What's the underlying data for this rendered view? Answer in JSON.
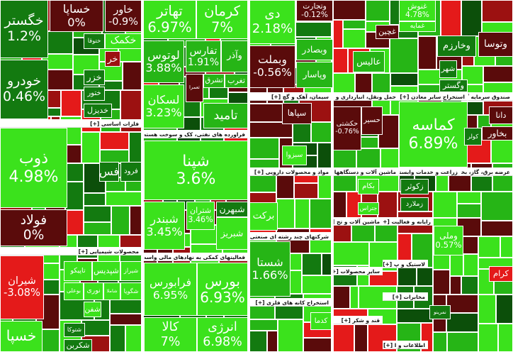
{
  "sectors": [
    {
      "title": "فلزات اساسی [+]"
    },
    {
      "title": "محصولات شیمیایی [+]"
    },
    {
      "title": "فراورده های نفتی، کک و سوخت هسته ای [+]"
    },
    {
      "title": "فعالیتهای کمکی به نهادهای مالی واسط [+]"
    },
    {
      "title": "سیمان، آهک و گچ [+]"
    },
    {
      "title": "مواد و محصولات دارویی [+]"
    },
    {
      "title": "شرکتهای چند رشته ای صنعتی [+]"
    },
    {
      "title": "استخراج کانه های فلزی [+]"
    },
    {
      "title": "حمل ونقل، انبارداری و ا [+]"
    },
    {
      "title": "استخراج سایر معادن [+]"
    },
    {
      "title": "صندوق سرمایه گذاری"
    },
    {
      "title": "ماشین آلات و دستگاهها [+]"
    },
    {
      "title": "زراعت و خدمات وابسته [+]"
    },
    {
      "title": "عرضه برق، گاز، بخا"
    },
    {
      "title": "ماشین آلات و تج [+]"
    },
    {
      "title": "رایانه و فعالیت [+]"
    },
    {
      "title": "لاستیک و پ [+]"
    },
    {
      "title": "سایر محصولات [+]"
    },
    {
      "title": "مخابرات [+]"
    },
    {
      "title": "قند و شکر [+]"
    },
    {
      "title": "اطلاعات و ا [+]"
    }
  ],
  "tiles": [
    {
      "name": "خگستر",
      "change": "1.2%"
    },
    {
      "name": "خودرو",
      "change": "0.46%"
    },
    {
      "name": "خساپا",
      "change": "0%"
    },
    {
      "name": "خاور",
      "change": "-0.9%"
    },
    {
      "name": "خکمک"
    },
    {
      "name": "ختوقا"
    },
    {
      "name": "خزر"
    },
    {
      "name": "ختور"
    },
    {
      "name": "خدیزل"
    },
    {
      "name": "خر"
    },
    {
      "name": "ذوب",
      "change": "4.98%"
    },
    {
      "name": "فولاد",
      "change": "0%"
    },
    {
      "name": "فرود"
    },
    {
      "name": "فس"
    },
    {
      "name": "شیران",
      "change": "-3.08%"
    },
    {
      "name": "تاپیکو"
    },
    {
      "name": "شپدیس"
    },
    {
      "name": "شیراز"
    },
    {
      "name": "بوعلی"
    },
    {
      "name": "نوری"
    },
    {
      "name": "شگویا"
    },
    {
      "name": "شاملا"
    },
    {
      "name": "شفن"
    },
    {
      "name": "شتوکا"
    },
    {
      "name": "شکربن"
    },
    {
      "name": "خسپا"
    },
    {
      "name": "تهاتر",
      "change": "6.97%"
    },
    {
      "name": "کرمان",
      "change": "7%"
    },
    {
      "name": "لوتوس",
      "change": "3.88%"
    },
    {
      "name": "تفارس",
      "change": "1.91%"
    },
    {
      "name": "وآذر"
    },
    {
      "name": "لسکان",
      "change": "3.23%"
    },
    {
      "name": "تعمرا"
    },
    {
      "name": "تشرق"
    },
    {
      "name": "تغرب"
    },
    {
      "name": "تامید"
    },
    {
      "name": "شپنا",
      "change": "3.6%"
    },
    {
      "name": "شبندر",
      "change": "3.45%"
    },
    {
      "name": "شتران",
      "change": "3.46%"
    },
    {
      "name": "شبهرن"
    },
    {
      "name": "شبریز"
    },
    {
      "name": "فرابورس",
      "change": "6.95%"
    },
    {
      "name": "بورس",
      "change": "6.93%"
    },
    {
      "name": "کالا",
      "change": "7%"
    },
    {
      "name": "انرژی",
      "change": "6.98%"
    },
    {
      "name": "دی",
      "change": "2.18%"
    },
    {
      "name": "وتجارت",
      "change": "-0.12%"
    },
    {
      "name": "وبصادر"
    },
    {
      "name": "وپاسار"
    },
    {
      "name": "وبملت",
      "change": "-0.56%"
    },
    {
      "name": "سپاها"
    },
    {
      "name": "سبزوا"
    },
    {
      "name": "برکت"
    },
    {
      "name": "شستا",
      "change": "1.66%"
    },
    {
      "name": "کدما"
    },
    {
      "name": "عالیس"
    },
    {
      "name": "غچین"
    },
    {
      "name": "غنوش",
      "change": "4.78%"
    },
    {
      "name": "غمایه"
    },
    {
      "name": "حکشتی",
      "change": "-0.76%"
    },
    {
      "name": "حسیر"
    },
    {
      "name": "کماسه",
      "change": "6.89%"
    },
    {
      "name": "وخارزم"
    },
    {
      "name": "وتوسا"
    },
    {
      "name": "شهر"
    },
    {
      "name": "وگستر"
    },
    {
      "name": "دانا"
    },
    {
      "name": "کولر"
    },
    {
      "name": "بخاور"
    },
    {
      "name": "بکام"
    },
    {
      "name": "زکوثر"
    },
    {
      "name": "زملارد"
    },
    {
      "name": "جتراس"
    },
    {
      "name": "وملی",
      "change": "0.57%"
    },
    {
      "name": "کرام"
    },
    {
      "name": "نمرینو"
    }
  ]
}
